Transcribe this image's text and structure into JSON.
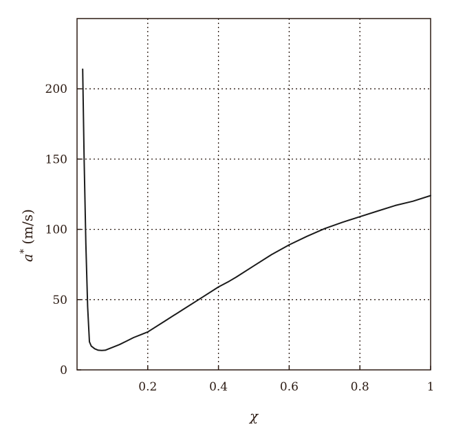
{
  "chart_data": {
    "type": "line",
    "title": "",
    "xlabel": "χ",
    "ylabel_symbol": "a",
    "ylabel_superscript": "*",
    "ylabel_unit": " (m/s)",
    "xlim": [
      0.0,
      1.0
    ],
    "ylim": [
      0,
      250
    ],
    "x_ticks": [
      {
        "value": 0.2,
        "label": "0.2"
      },
      {
        "value": 0.4,
        "label": "0.4"
      },
      {
        "value": 0.6,
        "label": "0.6"
      },
      {
        "value": 0.8,
        "label": "0.8"
      },
      {
        "value": 1.0,
        "label": "1"
      }
    ],
    "y_ticks": [
      {
        "value": 0,
        "label": "0"
      },
      {
        "value": 50,
        "label": "50"
      },
      {
        "value": 100,
        "label": "100"
      },
      {
        "value": 150,
        "label": "150"
      },
      {
        "value": 200,
        "label": "200"
      }
    ],
    "grid": true,
    "legend": "none",
    "series": [
      {
        "x": [
          0.016,
          0.02,
          0.025,
          0.03,
          0.035,
          0.04,
          0.05,
          0.06,
          0.07,
          0.08,
          0.09,
          0.1,
          0.12,
          0.14,
          0.16,
          0.18,
          0.2,
          0.25,
          0.3,
          0.35,
          0.4,
          0.43,
          0.45,
          0.5,
          0.55,
          0.6,
          0.65,
          0.7,
          0.75,
          0.8,
          0.85,
          0.9,
          0.95,
          1.0
        ],
        "y": [
          214,
          150,
          90,
          45,
          20,
          17,
          15,
          14,
          13.8,
          14,
          15,
          16,
          18,
          20.5,
          23,
          25,
          27,
          35,
          43,
          51,
          59,
          63,
          66,
          74,
          82,
          89,
          95,
          100.5,
          105,
          109,
          113,
          117,
          120,
          124
        ]
      }
    ]
  }
}
